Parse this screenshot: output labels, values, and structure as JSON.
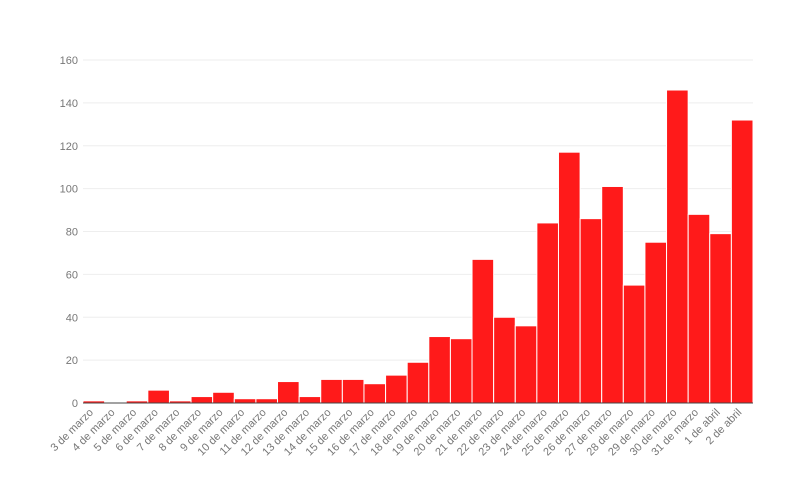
{
  "chart_data": {
    "type": "bar",
    "categories": [
      "3 de marzo",
      "4 de marzo",
      "5 de marzo",
      "6 de marzo",
      "7 de marzo",
      "8 de marzo",
      "9 de marzo",
      "10 de marzo",
      "11 de marzo",
      "12 de marzo",
      "13 de marzo",
      "14 de marzo",
      "15 de marzo",
      "16 de marzo",
      "17 de marzo",
      "18 de marzo",
      "19 de marzo",
      "20 de marzo",
      "21 de marzo",
      "22 de marzo",
      "23 de marzo",
      "24 de marzo",
      "25 de marzo",
      "26 de marzo",
      "27 de marzo",
      "28 de marzo",
      "29 de marzo",
      "30 de marzo",
      "31 de marzo",
      "1 de abril",
      "2 de abril"
    ],
    "values": [
      1,
      0,
      1,
      6,
      1,
      3,
      5,
      2,
      2,
      10,
      3,
      11,
      11,
      9,
      13,
      19,
      31,
      30,
      67,
      40,
      36,
      84,
      117,
      86,
      101,
      55,
      75,
      146,
      88,
      79,
      132
    ],
    "title": "",
    "xlabel": "",
    "ylabel": "",
    "ylim": [
      0,
      160
    ],
    "yticks": [
      0,
      20,
      40,
      60,
      80,
      100,
      120,
      140,
      160
    ],
    "grid": true,
    "bar_color": "#ff1a1a"
  }
}
